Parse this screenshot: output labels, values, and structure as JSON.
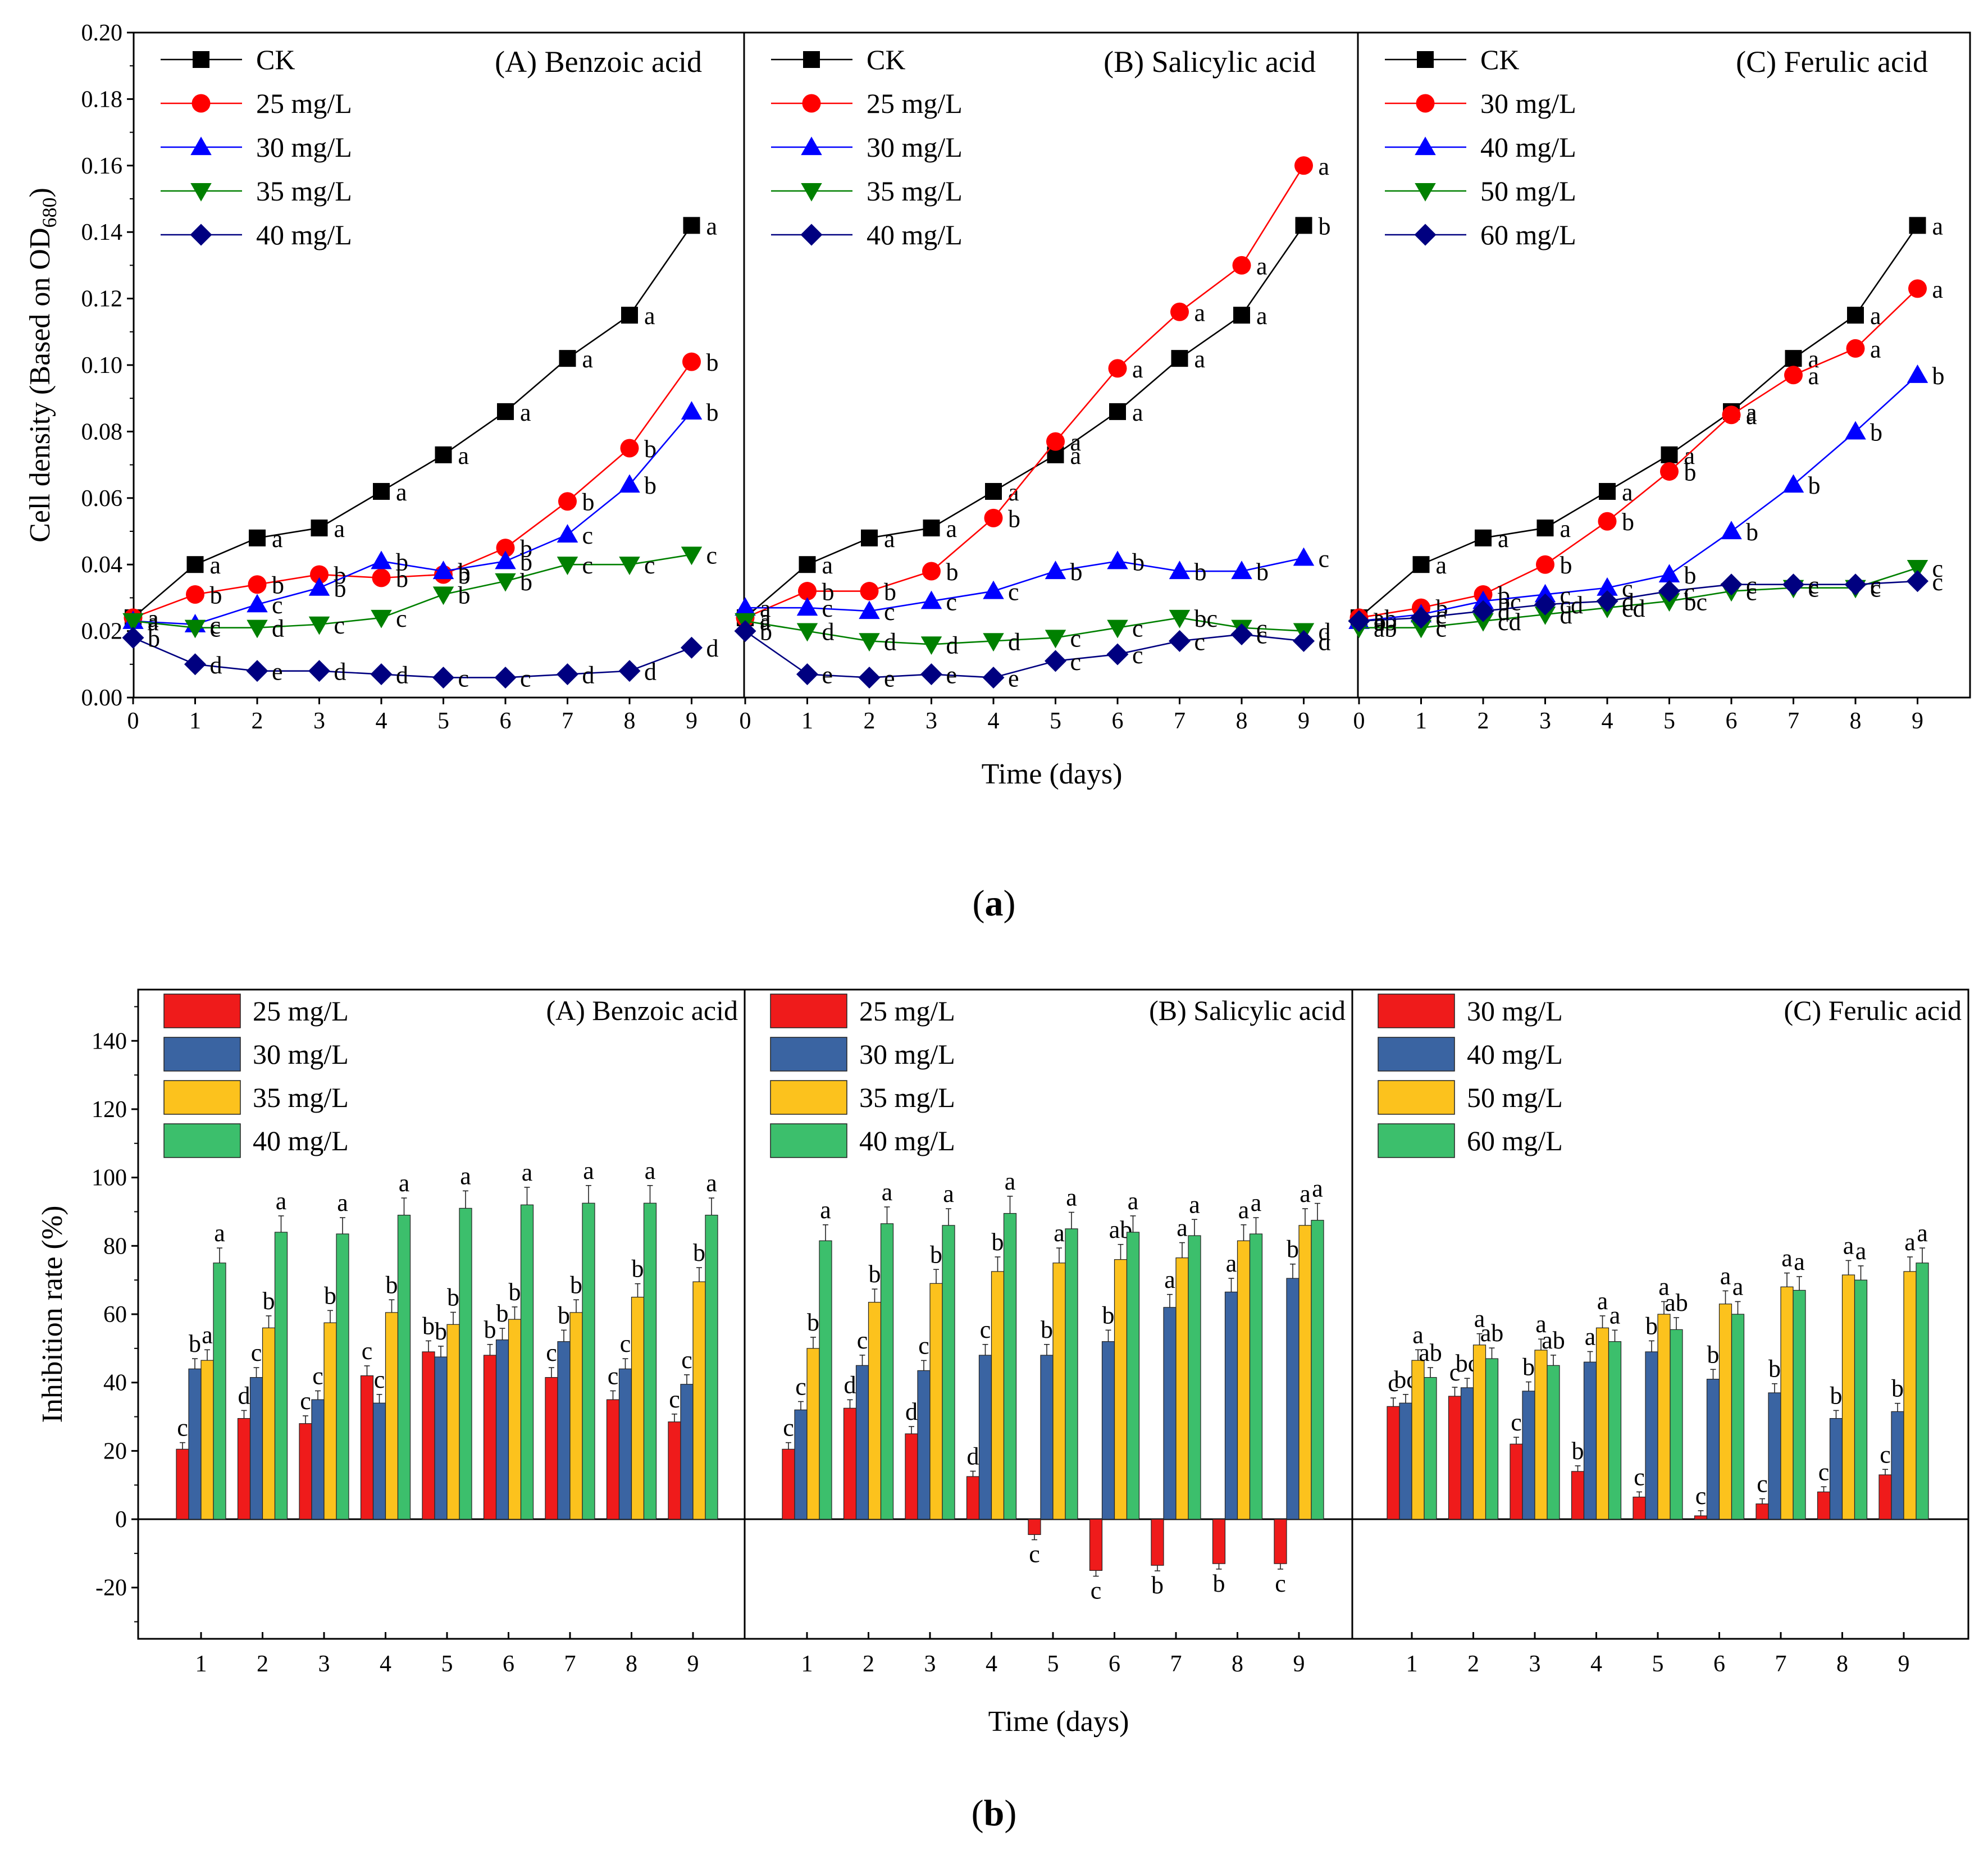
{
  "figure": {
    "panel_a_label": "(a)",
    "panel_b_label": "(b)",
    "letter_a": "a",
    "letter_b": "b"
  },
  "colors": {
    "CK": "#000000",
    "s1": "#ff0000",
    "s2": "#0000ff",
    "s3": "#008000",
    "s4": "#000080",
    "bar1": "#ef1b1b",
    "bar2": "#3a64a2",
    "bar3": "#fcc21d",
    "bar4": "#3cbf6c"
  },
  "chart_data": [
    {
      "type": "line",
      "title": "(a) Cell density",
      "xlabel": "Time (days)",
      "ylabel": "Cell density (Based on OD680)",
      "ylim": [
        0,
        0.2
      ],
      "yticks": [
        "0.00",
        "0.02",
        "0.04",
        "0.06",
        "0.08",
        "0.10",
        "0.12",
        "0.14",
        "0.16",
        "0.18",
        "0.20"
      ],
      "x": [
        0,
        1,
        2,
        3,
        4,
        5,
        6,
        7,
        8,
        9
      ],
      "subplots": [
        {
          "title": "(A) Benzoic acid",
          "series": [
            {
              "name": "CK",
              "marker": "square",
              "values": [
                0.024,
                0.04,
                0.048,
                0.051,
                0.062,
                0.073,
                0.086,
                0.102,
                0.115,
                0.142
              ],
              "letters": [
                "a",
                "a",
                "a",
                "a",
                "a",
                "a",
                "a",
                "a",
                "a",
                "a"
              ]
            },
            {
              "name": "25 mg/L",
              "marker": "circle",
              "values": [
                0.024,
                0.031,
                0.034,
                0.037,
                0.036,
                0.037,
                0.045,
                0.059,
                0.075,
                0.101
              ],
              "letters": [
                "a",
                "b",
                "b",
                "b",
                "b",
                "b",
                "b",
                "b",
                "b",
                "b"
              ]
            },
            {
              "name": "30 mg/L",
              "marker": "triangle-up",
              "values": [
                0.023,
                0.022,
                0.028,
                0.033,
                0.041,
                0.038,
                0.041,
                0.049,
                0.064,
                0.086
              ],
              "letters": [
                "a",
                "c",
                "c",
                "b",
                "b",
                "b",
                "b",
                "c",
                "b",
                "b"
              ]
            },
            {
              "name": "35 mg/L",
              "marker": "triangle-down",
              "values": [
                0.023,
                0.021,
                0.021,
                0.022,
                0.024,
                0.031,
                0.035,
                0.04,
                0.04,
                0.043
              ],
              "letters": [
                "a",
                "c",
                "d",
                "c",
                "c",
                "b",
                "b",
                "c",
                "c",
                "c"
              ]
            },
            {
              "name": "40 mg/L",
              "marker": "diamond",
              "values": [
                0.018,
                0.01,
                0.008,
                0.008,
                0.007,
                0.006,
                0.006,
                0.007,
                0.008,
                0.015
              ],
              "letters": [
                "b",
                "d",
                "e",
                "d",
                "d",
                "c",
                "c",
                "d",
                "d",
                "d"
              ]
            }
          ]
        },
        {
          "title": "(B) Salicylic acid",
          "series": [
            {
              "name": "CK",
              "marker": "square",
              "values": [
                0.024,
                0.04,
                0.048,
                0.051,
                0.062,
                0.073,
                0.086,
                0.102,
                0.115,
                0.142
              ],
              "letters": [
                "a",
                "a",
                "a",
                "a",
                "a",
                "a",
                "a",
                "a",
                "a",
                "b"
              ]
            },
            {
              "name": "25 mg/L",
              "marker": "circle",
              "values": [
                0.024,
                0.032,
                0.032,
                0.038,
                0.054,
                0.077,
                0.099,
                0.116,
                0.13,
                0.16
              ],
              "letters": [
                "a",
                "b",
                "b",
                "b",
                "b",
                "a",
                "a",
                "a",
                "a",
                "a"
              ]
            },
            {
              "name": "30 mg/L",
              "marker": "triangle-up",
              "values": [
                0.027,
                0.027,
                0.026,
                0.029,
                0.032,
                0.038,
                0.041,
                0.038,
                0.038,
                0.042
              ],
              "letters": [
                "a",
                "c",
                "c",
                "c",
                "c",
                "b",
                "b",
                "b",
                "b",
                "c"
              ]
            },
            {
              "name": "35 mg/L",
              "marker": "triangle-down",
              "values": [
                0.023,
                0.02,
                0.017,
                0.016,
                0.017,
                0.018,
                0.021,
                0.024,
                0.021,
                0.02
              ],
              "letters": [
                "a",
                "d",
                "d",
                "d",
                "d",
                "c",
                "c",
                "bc",
                "c",
                "d"
              ]
            },
            {
              "name": "40 mg/L",
              "marker": "diamond",
              "values": [
                0.02,
                0.007,
                0.006,
                0.007,
                0.006,
                0.011,
                0.013,
                0.017,
                0.019,
                0.017
              ],
              "letters": [
                "b",
                "e",
                "e",
                "e",
                "e",
                "c",
                "c",
                "c",
                "c",
                "d"
              ]
            }
          ]
        },
        {
          "title": "(C) Ferulic acid",
          "series": [
            {
              "name": "CK",
              "marker": "square",
              "values": [
                0.024,
                0.04,
                0.048,
                0.051,
                0.062,
                0.073,
                0.086,
                0.102,
                0.115,
                0.142
              ],
              "letters": [
                "a",
                "a",
                "a",
                "a",
                "a",
                "a",
                "a",
                "a",
                "a",
                "a"
              ]
            },
            {
              "name": "30 mg/L",
              "marker": "circle",
              "values": [
                0.024,
                0.027,
                0.031,
                0.04,
                0.053,
                0.068,
                0.085,
                0.097,
                0.105,
                0.123
              ],
              "letters": [
                "ab",
                "b",
                "b",
                "b",
                "b",
                "b",
                "a",
                "a",
                "a",
                "a"
              ]
            },
            {
              "name": "40 mg/L",
              "marker": "triangle-up",
              "values": [
                0.023,
                0.025,
                0.029,
                0.031,
                0.033,
                0.037,
                0.05,
                0.064,
                0.08,
                0.097
              ],
              "letters": [
                "ab",
                "c",
                "bc",
                "c",
                "c",
                "b",
                "b",
                "b",
                "b",
                "b"
              ]
            },
            {
              "name": "50 mg/L",
              "marker": "triangle-down",
              "values": [
                0.021,
                0.021,
                0.023,
                0.025,
                0.027,
                0.029,
                0.032,
                0.033,
                0.033,
                0.039
              ],
              "letters": [
                "ab",
                "c",
                "cd",
                "d",
                "cd",
                "bc",
                "c",
                "c",
                "c",
                "c"
              ]
            },
            {
              "name": "60 mg/L",
              "marker": "diamond",
              "values": [
                0.023,
                0.024,
                0.026,
                0.028,
                0.029,
                0.032,
                0.034,
                0.034,
                0.034,
                0.035
              ],
              "letters": [
                "b",
                "c",
                "d",
                "cd",
                "d",
                "c",
                "c",
                "c",
                "c",
                "c"
              ]
            }
          ]
        }
      ]
    },
    {
      "type": "bar",
      "title": "(b) Inhibition rate",
      "xlabel": "Time (days)",
      "ylabel": "Inhibition rate (%)",
      "ylim": [
        -35,
        155
      ],
      "yticks": [
        "-20",
        "0",
        "20",
        "40",
        "60",
        "80",
        "100",
        "120",
        "140"
      ],
      "categories": [
        "1",
        "2",
        "3",
        "4",
        "5",
        "6",
        "7",
        "8",
        "9"
      ],
      "subplots": [
        {
          "title": "(A) Benzoic acid",
          "series": [
            {
              "name": "25 mg/L",
              "values": [
                20.5,
                29.5,
                28,
                42,
                49,
                48,
                41.5,
                35,
                28.5
              ],
              "letters": [
                "c",
                "d",
                "c",
                "c",
                "b",
                "b",
                "c",
                "c",
                "c"
              ]
            },
            {
              "name": "30 mg/L",
              "values": [
                44,
                41.5,
                35,
                34,
                47.5,
                52.5,
                52,
                44,
                39.5
              ],
              "letters": [
                "b",
                "c",
                "c",
                "c",
                "b",
                "b",
                "b",
                "c",
                "c"
              ]
            },
            {
              "name": "35 mg/L",
              "values": [
                46.5,
                56,
                57.5,
                60.5,
                57,
                58.5,
                60.5,
                65,
                69.5
              ],
              "letters": [
                "a",
                "b",
                "b",
                "b",
                "b",
                "b",
                "b",
                "b",
                "b"
              ]
            },
            {
              "name": "40 mg/L",
              "values": [
                75,
                84,
                83.5,
                89,
                91,
                92,
                92.5,
                92.5,
                89
              ],
              "letters": [
                "a",
                "a",
                "a",
                "a",
                "a",
                "a",
                "a",
                "a",
                "a"
              ]
            }
          ]
        },
        {
          "title": "(B) Salicylic acid",
          "series": [
            {
              "name": "25 mg/L",
              "values": [
                20.5,
                32.5,
                25,
                12.5,
                -4.5,
                -15,
                -13.5,
                -13,
                -13
              ],
              "letters": [
                "c",
                "d",
                "d",
                "d",
                "c",
                "c",
                "b",
                "b",
                "c"
              ]
            },
            {
              "name": "30 mg/L",
              "values": [
                32,
                45,
                43.5,
                48,
                48,
                52,
                62,
                66.5,
                70.5
              ],
              "letters": [
                "c",
                "c",
                "c",
                "c",
                "b",
                "b",
                "a",
                "a",
                "b"
              ]
            },
            {
              "name": "35 mg/L",
              "values": [
                50,
                63.5,
                69,
                72.5,
                75,
                76,
                76.5,
                81.5,
                86
              ],
              "letters": [
                "b",
                "b",
                "b",
                "b",
                "a",
                "ab",
                "a",
                "a",
                "a"
              ]
            },
            {
              "name": "40 mg/L",
              "values": [
                81.5,
                86.5,
                86,
                89.5,
                85,
                84,
                83,
                83.5,
                87.5
              ],
              "letters": [
                "a",
                "a",
                "a",
                "a",
                "a",
                "a",
                "a",
                "a",
                "a"
              ]
            }
          ]
        },
        {
          "title": "(C) Ferulic acid",
          "series": [
            {
              "name": "30 mg/L",
              "values": [
                33,
                36,
                22,
                14,
                6.5,
                1,
                4.5,
                8,
                13
              ],
              "letters": [
                "c",
                "c",
                "c",
                "b",
                "c",
                "c",
                "c",
                "c",
                "c"
              ]
            },
            {
              "name": "40 mg/L",
              "values": [
                34,
                38.5,
                37.5,
                46,
                49,
                41,
                37,
                29.5,
                31.5
              ],
              "letters": [
                "bc",
                "bc",
                "b",
                "a",
                "b",
                "b",
                "b",
                "b",
                "b"
              ]
            },
            {
              "name": "50 mg/L",
              "values": [
                46.5,
                51,
                49.5,
                56,
                60,
                63,
                68,
                71.5,
                72.5
              ],
              "letters": [
                "a",
                "a",
                "a",
                "a",
                "a",
                "a",
                "a",
                "a",
                "a"
              ]
            },
            {
              "name": "60 mg/L",
              "values": [
                41.5,
                47,
                45,
                52,
                55.5,
                60,
                67,
                70,
                75
              ],
              "letters": [
                "ab",
                "ab",
                "ab",
                "a",
                "ab",
                "a",
                "a",
                "a",
                "a"
              ]
            }
          ]
        }
      ]
    }
  ]
}
